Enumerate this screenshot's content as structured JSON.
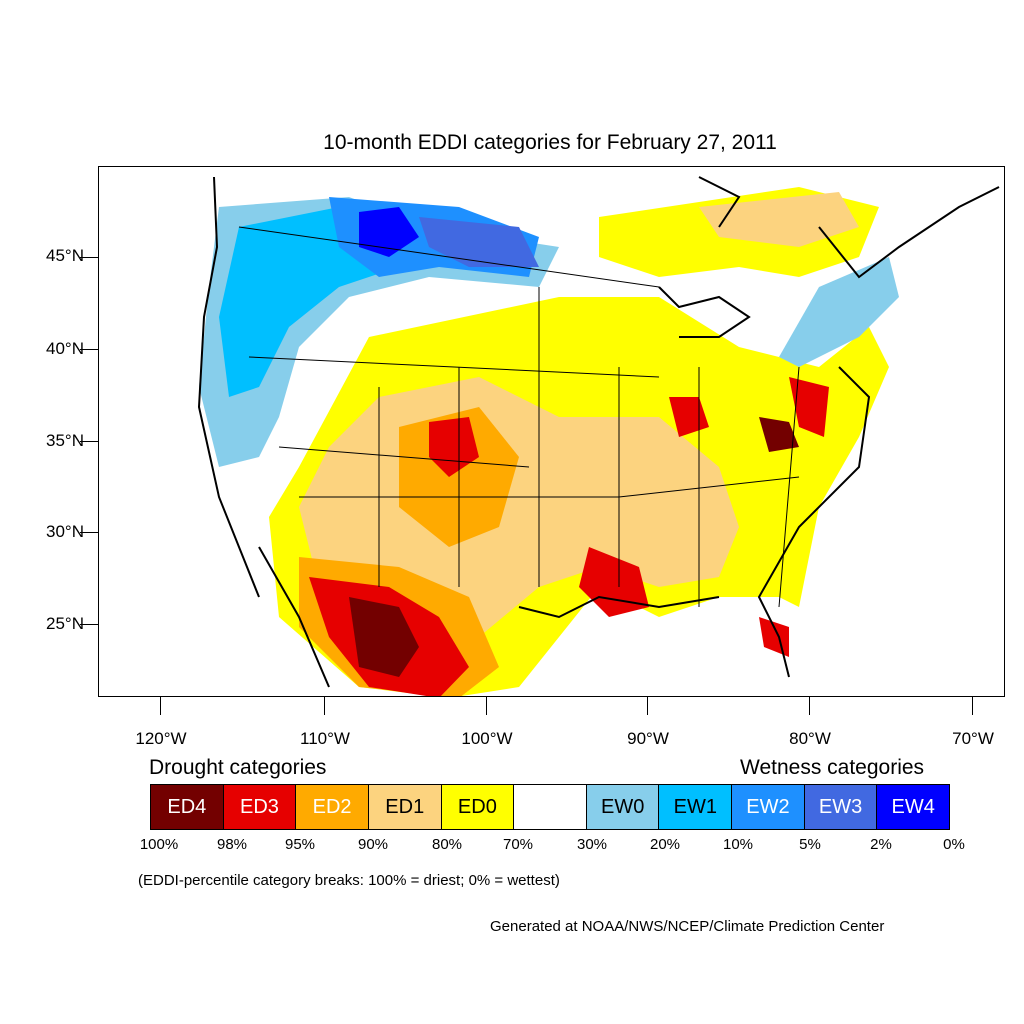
{
  "title": "10-month EDDI categories for February 27, 2011",
  "lat_labels": [
    "45°N",
    "40°N",
    "35°N",
    "30°N",
    "25°N"
  ],
  "lon_labels": [
    "120°W",
    "110°W",
    "100°W",
    "90°W",
    "80°W",
    "70°W"
  ],
  "legend": {
    "drought_heading": "Drought categories",
    "wetness_heading": "Wetness categories",
    "categories": [
      {
        "label": "ED4",
        "color": "#730000",
        "text_color": "#ffffff"
      },
      {
        "label": "ED3",
        "color": "#e60000",
        "text_color": "#ffffff"
      },
      {
        "label": "ED2",
        "color": "#ffaa00",
        "text_color": "#ffffff"
      },
      {
        "label": "ED1",
        "color": "#fcd37f",
        "text_color": "#000000"
      },
      {
        "label": "ED0",
        "color": "#ffff00",
        "text_color": "#000000"
      },
      {
        "label": "",
        "color": "#ffffff",
        "text_color": "#000000"
      },
      {
        "label": "EW0",
        "color": "#87ceeb",
        "text_color": "#000000"
      },
      {
        "label": "EW1",
        "color": "#00bfff",
        "text_color": "#000000"
      },
      {
        "label": "EW2",
        "color": "#1e90ff",
        "text_color": "#ffffff"
      },
      {
        "label": "EW3",
        "color": "#4169e1",
        "text_color": "#ffffff"
      },
      {
        "label": "EW4",
        "color": "#0000ff",
        "text_color": "#ffffff"
      }
    ],
    "percent_breaks": [
      "100%",
      "98%",
      "95%",
      "90%",
      "80%",
      "70%",
      "30%",
      "20%",
      "10%",
      "5%",
      "2%",
      "0%"
    ]
  },
  "breaks_note": "(EDDI-percentile category breaks: 100% = driest; 0% = wettest)",
  "credit": "Generated at NOAA/NWS/NCEP/Climate Prediction Center"
}
